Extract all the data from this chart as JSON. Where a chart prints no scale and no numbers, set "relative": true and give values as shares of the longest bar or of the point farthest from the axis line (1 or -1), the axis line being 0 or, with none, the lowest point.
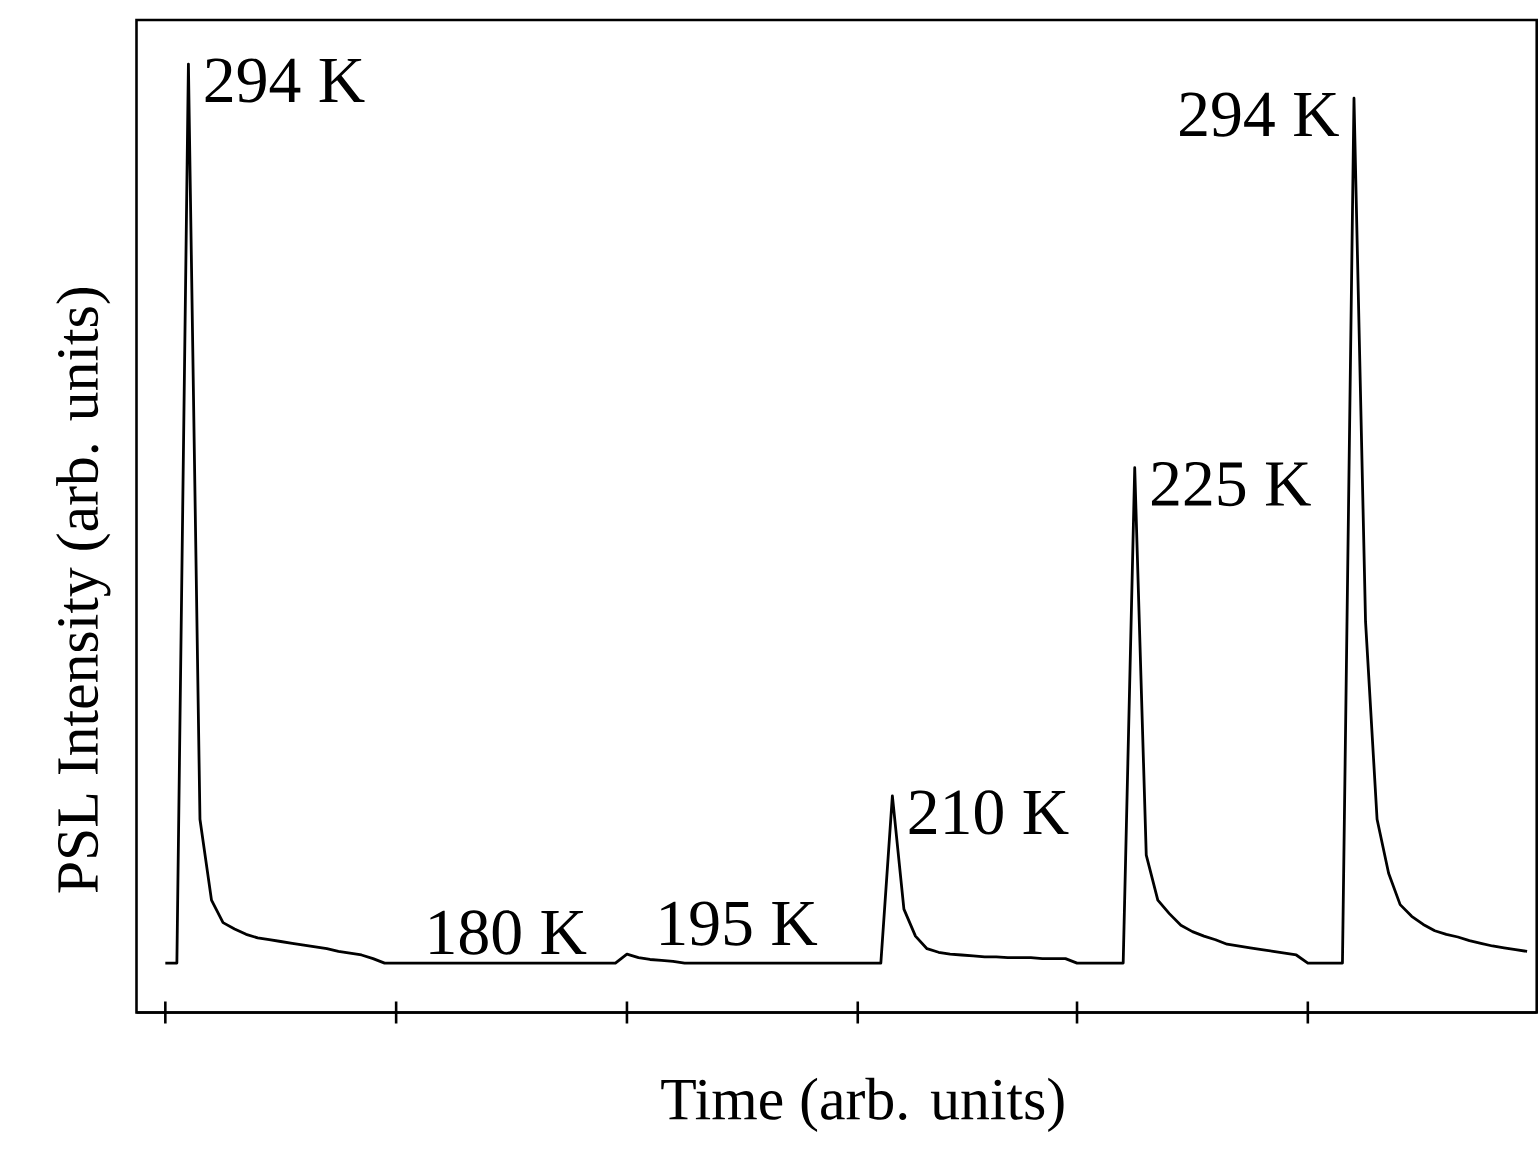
{
  "chart_data": {
    "type": "line",
    "relative": true,
    "xlabel": "Time (arb. units)",
    "ylabel": "PSL Intensity (arb. units)",
    "categories": [
      null,
      null,
      null,
      null,
      null,
      null,
      null,
      null,
      null,
      null,
      null,
      null,
      null,
      null,
      null,
      null,
      null,
      null,
      null,
      null,
      null,
      null,
      null,
      null,
      null,
      null,
      null,
      null,
      null,
      null,
      null,
      null,
      null,
      null,
      null,
      null,
      null,
      null,
      null,
      null,
      null,
      null,
      null,
      null,
      null,
      null,
      null,
      null,
      null,
      null,
      null,
      null,
      null,
      null,
      null,
      null,
      null,
      null,
      null,
      null,
      null,
      null,
      null,
      null,
      null,
      null,
      null,
      null,
      null,
      null,
      null,
      null,
      null,
      null,
      null,
      null,
      null,
      null,
      null,
      null,
      null,
      null,
      null,
      null,
      null,
      null,
      null,
      null,
      null,
      null,
      null,
      null,
      null,
      null,
      null,
      null,
      null,
      null,
      null,
      null,
      null,
      null,
      null,
      null,
      null,
      null,
      null,
      null,
      null,
      null,
      null,
      null,
      null,
      null,
      null,
      null,
      null,
      null,
      null
    ],
    "series": [
      {
        "color": "#000000",
        "values": [
          0,
          0,
          1,
          0.16,
          0.07,
          0.045,
          0.038,
          0.032,
          0.028,
          0.026,
          0.024,
          0.022,
          0.02,
          0.018,
          0.016,
          0.013,
          0.011,
          0.009,
          0.005,
          0,
          0,
          0,
          0,
          0,
          0,
          0,
          0,
          0,
          0,
          0,
          0,
          0,
          0,
          0,
          0,
          0,
          0,
          0,
          0,
          0,
          0.01,
          0.006,
          0.004,
          0.003,
          0.002,
          0,
          0,
          0,
          0,
          0,
          0,
          0,
          0,
          0,
          0,
          0,
          0,
          0,
          0,
          0,
          0,
          0,
          0,
          0.186,
          0.06,
          0.03,
          0.016,
          0.012,
          0.01,
          0.009,
          0.008,
          0.007,
          0.007,
          0.006,
          0.006,
          0.006,
          0.005,
          0.005,
          0.005,
          0,
          0,
          0,
          0,
          0,
          0.551,
          0.12,
          0.07,
          0.055,
          0.042,
          0.035,
          0.03,
          0.026,
          0.021,
          0.019,
          0.017,
          0.015,
          0.013,
          0.011,
          0.009,
          0,
          0,
          0,
          0,
          0.962,
          0.38,
          0.16,
          0.1,
          0.065,
          0.052,
          0.043,
          0.036,
          0.032,
          0.029,
          0.025,
          0.022,
          0.019,
          0.017,
          0.015,
          0.013
        ]
      }
    ],
    "annotations": [
      "294 K",
      "180 K",
      "195 K",
      "210 K",
      "225 K",
      "294 K"
    ]
  }
}
